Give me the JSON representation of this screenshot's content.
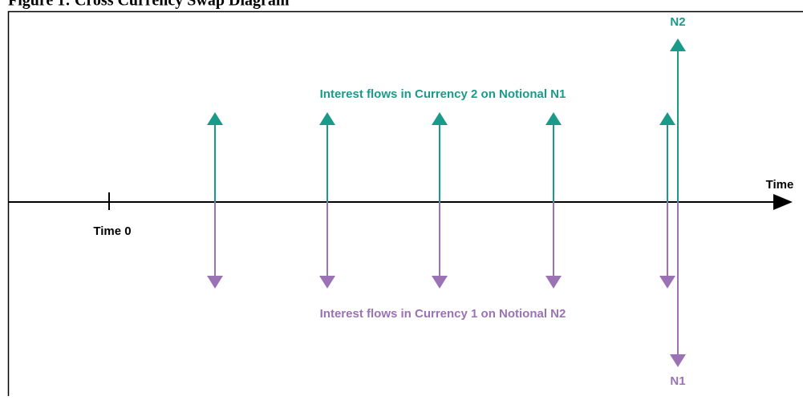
{
  "header": {
    "title": "Figure 1: Cross Currency Swap Diagram"
  },
  "diagram": {
    "axis_label": "Time",
    "origin_label": "Time 0",
    "top_label": "Interest flows in Currency 2 on Notional N1",
    "bottom_label": "Interest flows in Currency 1 on Notional N2",
    "top_notional": "N2",
    "bottom_notional": "N1"
  }
}
